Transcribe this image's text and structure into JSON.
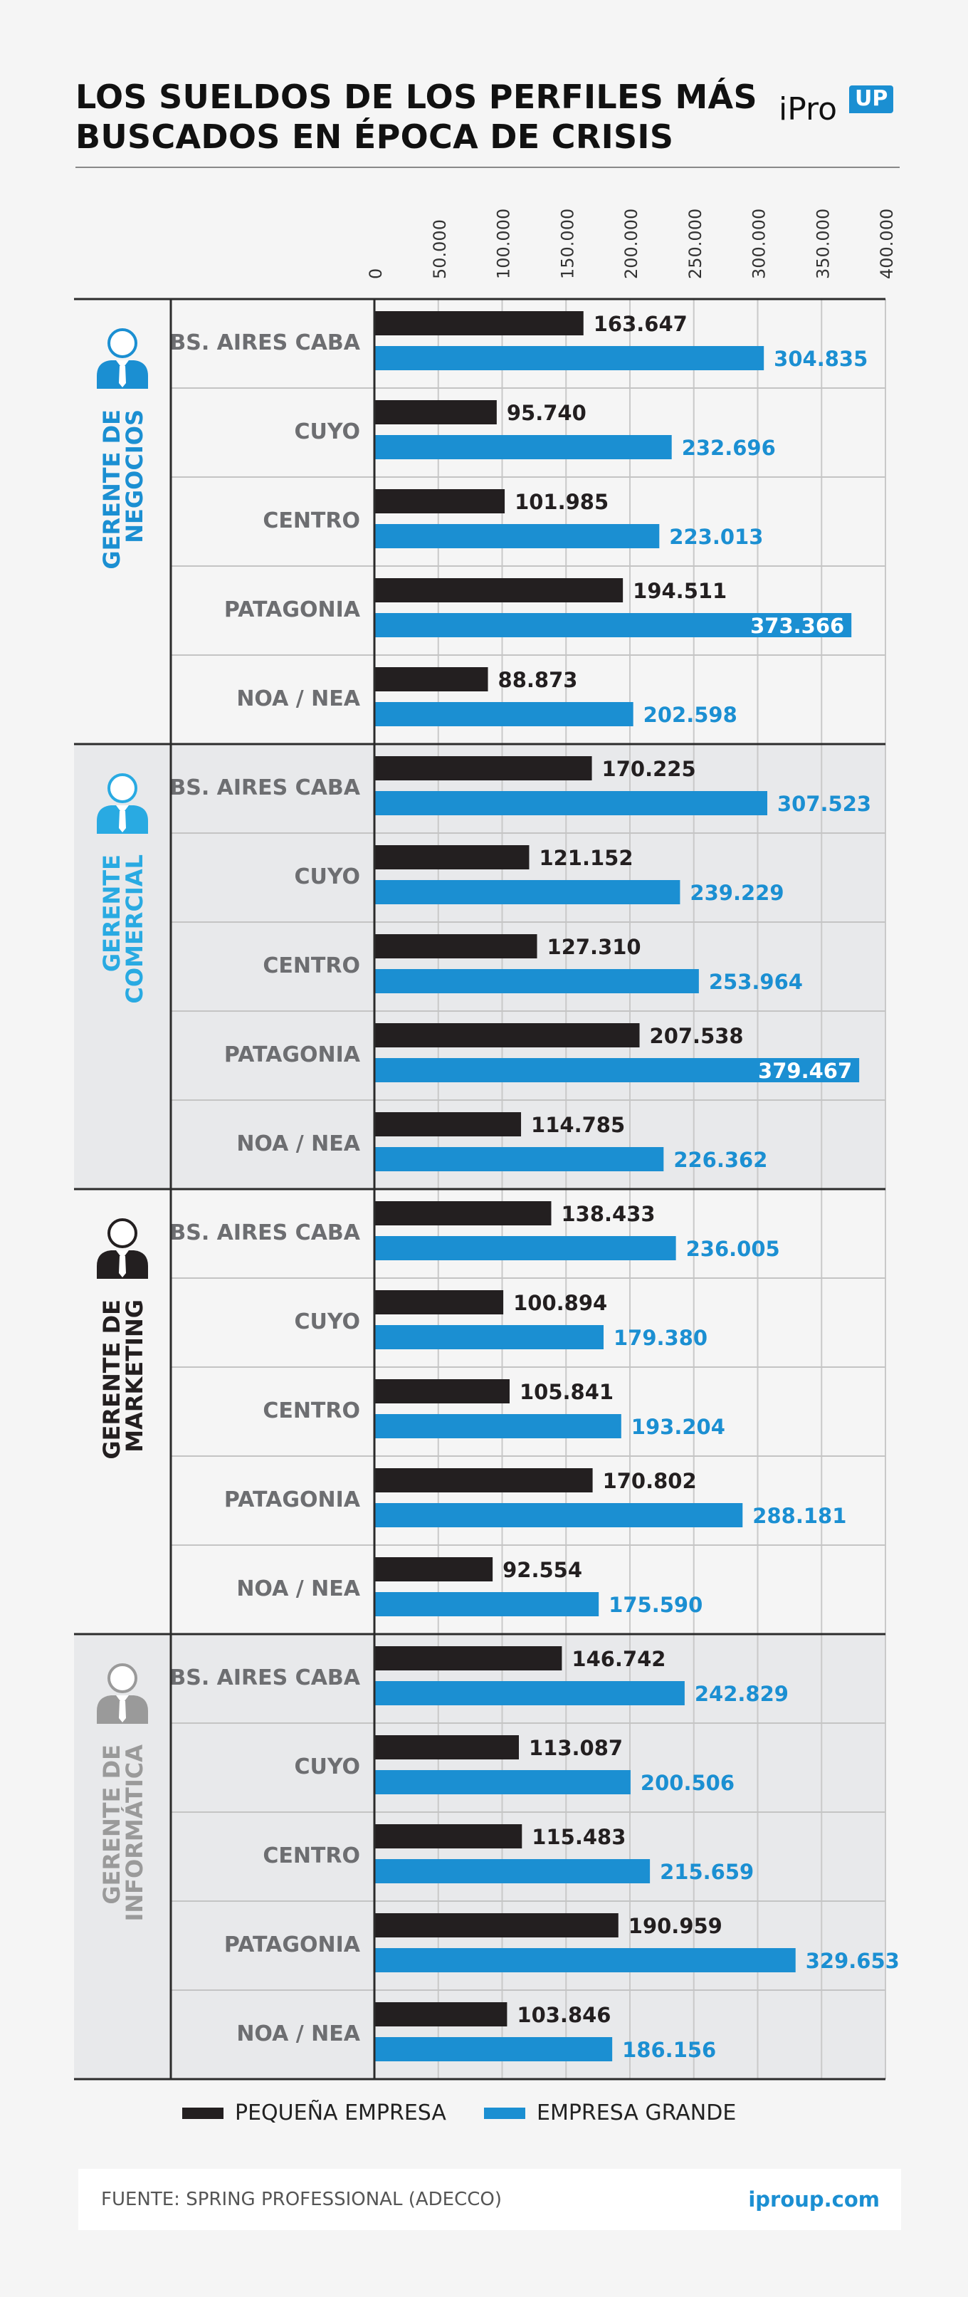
{
  "title": {
    "line1": "LOS SUELDOS DE LOS PERFILES MÁS",
    "line2": "BUSCADOS EN ÉPOCA DE CRISIS"
  },
  "logo": {
    "text": "iPro",
    "badge": "UP"
  },
  "colors": {
    "pequena": "#231f20",
    "grande": "#1b8fd2"
  },
  "legend": [
    {
      "label": "PEQUEÑA EMPRESA",
      "color": "#231f20"
    },
    {
      "label": "EMPRESA GRANDE",
      "color": "#1b8fd2"
    }
  ],
  "footer": {
    "source": "FUENTE: SPRING PROFESSIONAL (ADECCO)",
    "url": "iproup.com"
  },
  "chart_data": {
    "type": "bar",
    "orientation": "horizontal",
    "xlim": [
      0,
      400000
    ],
    "ticks": [
      "0",
      "50.000",
      "100.000",
      "150.000",
      "200.000",
      "250.000",
      "300.000",
      "350.000",
      "400.000"
    ],
    "grid": true,
    "legend_position": "bottom",
    "series_names": [
      "PEQUEÑA EMPRESA",
      "EMPRESA GRANDE"
    ],
    "groups": [
      {
        "name_lines": [
          "GERENTE DE",
          "NEGOCIOS"
        ],
        "label_color": "#1b8fd2",
        "icon": "businessman-icon",
        "icon_color": "#1b8fd2",
        "shaded": false,
        "rows": [
          {
            "region": "BS. AIRES CABA",
            "values": [
              163647,
              304835
            ],
            "labels": [
              "163.647",
              "304.835"
            ]
          },
          {
            "region": "CUYO",
            "values": [
              95740,
              232696
            ],
            "labels": [
              "95.740",
              "232.696"
            ]
          },
          {
            "region": "CENTRO",
            "values": [
              101985,
              223013
            ],
            "labels": [
              "101.985",
              "223.013"
            ]
          },
          {
            "region": "PATAGONIA",
            "values": [
              194511,
              373366
            ],
            "labels": [
              "194.511",
              "373.366"
            ]
          },
          {
            "region": "NOA / NEA",
            "values": [
              88873,
              202598
            ],
            "labels": [
              "88.873",
              "202.598"
            ]
          }
        ]
      },
      {
        "name_lines": [
          "GERENTE",
          "COMERCIAL"
        ],
        "label_color": "#29aae2",
        "icon": "businessman-icon",
        "icon_color": "#29aae2",
        "shaded": true,
        "rows": [
          {
            "region": "BS. AIRES CABA",
            "values": [
              170225,
              307523
            ],
            "labels": [
              "170.225",
              "307.523"
            ]
          },
          {
            "region": "CUYO",
            "values": [
              121152,
              239229
            ],
            "labels": [
              "121.152",
              "239.229"
            ]
          },
          {
            "region": "CENTRO",
            "values": [
              127310,
              253964
            ],
            "labels": [
              "127.310",
              "253.964"
            ]
          },
          {
            "region": "PATAGONIA",
            "values": [
              207538,
              379467
            ],
            "labels": [
              "207.538",
              "379.467"
            ]
          },
          {
            "region": "NOA / NEA",
            "values": [
              114785,
              226362
            ],
            "labels": [
              "114.785",
              "226.362"
            ]
          }
        ]
      },
      {
        "name_lines": [
          "GERENTE DE",
          "MARKETING"
        ],
        "label_color": "#231f20",
        "icon": "businessman-icon",
        "icon_color": "#231f20",
        "shaded": false,
        "rows": [
          {
            "region": "BS. AIRES CABA",
            "values": [
              138433,
              236005
            ],
            "labels": [
              "138.433",
              "236.005"
            ]
          },
          {
            "region": "CUYO",
            "values": [
              100894,
              179380
            ],
            "labels": [
              "100.894",
              "179.380"
            ]
          },
          {
            "region": "CENTRO",
            "values": [
              105841,
              193204
            ],
            "labels": [
              "105.841",
              "193.204"
            ]
          },
          {
            "region": "PATAGONIA",
            "values": [
              170802,
              288181
            ],
            "labels": [
              "170.802",
              "288.181"
            ]
          },
          {
            "region": "NOA / NEA",
            "values": [
              92554,
              175590
            ],
            "labels": [
              "92.554",
              "175.590"
            ]
          }
        ]
      },
      {
        "name_lines": [
          "GERENTE DE",
          "INFORMÁTICA"
        ],
        "label_color": "#9a9a9a",
        "icon": "businessman-icon",
        "icon_color": "#9a9a9a",
        "shaded": true,
        "rows": [
          {
            "region": "BS. AIRES CABA",
            "values": [
              146742,
              242829
            ],
            "labels": [
              "146.742",
              "242.829"
            ]
          },
          {
            "region": "CUYO",
            "values": [
              113087,
              200506
            ],
            "labels": [
              "113.087",
              "200.506"
            ]
          },
          {
            "region": "CENTRO",
            "values": [
              115483,
              215659
            ],
            "labels": [
              "115.483",
              "215.659"
            ]
          },
          {
            "region": "PATAGONIA",
            "values": [
              190959,
              329653
            ],
            "labels": [
              "190.959",
              "329.653"
            ]
          },
          {
            "region": "NOA / NEA",
            "values": [
              103846,
              186156
            ],
            "labels": [
              "103.846",
              "186.156"
            ]
          }
        ]
      }
    ]
  }
}
